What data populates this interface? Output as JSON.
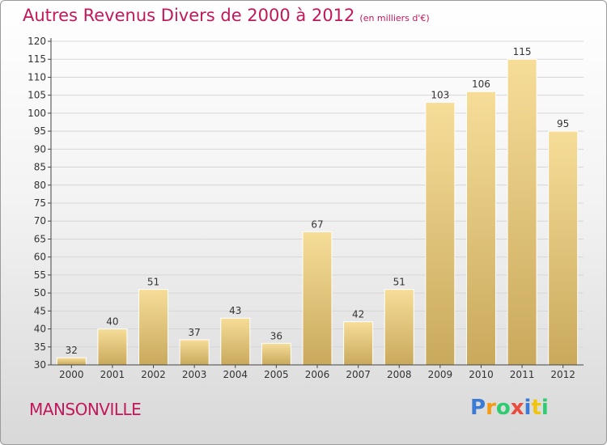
{
  "title": "Autres Revenus Divers de 2000 à 2012",
  "subtitle": "(en milliers d'€)",
  "location": "MANSONVILLE",
  "logo": {
    "letters": [
      "P",
      "r",
      "o",
      "x",
      "i",
      "t",
      "i"
    ],
    "colors": [
      "#3a7bd5",
      "#f39c12",
      "#2ecc71",
      "#e74c3c",
      "#3a7bd5",
      "#f1c40f",
      "#2ecc71"
    ]
  },
  "colors": {
    "title": "#c2185b",
    "bar_light": "#f6dd98",
    "bar_dark": "#c9a95c",
    "axis": "#444444",
    "grid": "#d6d6d6"
  },
  "chart_data": {
    "type": "bar",
    "categories": [
      "2000",
      "2001",
      "2002",
      "2003",
      "2004",
      "2005",
      "2006",
      "2007",
      "2008",
      "2009",
      "2010",
      "2011",
      "2012"
    ],
    "values": [
      32,
      40,
      51,
      37,
      43,
      36,
      67,
      42,
      51,
      103,
      106,
      115,
      95
    ],
    "title": "Autres Revenus Divers de 2000 à 2012",
    "ylim": [
      30,
      120
    ],
    "yticks": [
      30,
      35,
      40,
      45,
      50,
      55,
      60,
      65,
      70,
      75,
      80,
      85,
      90,
      95,
      100,
      105,
      110,
      115,
      120
    ],
    "grid": true,
    "legend": "none"
  }
}
